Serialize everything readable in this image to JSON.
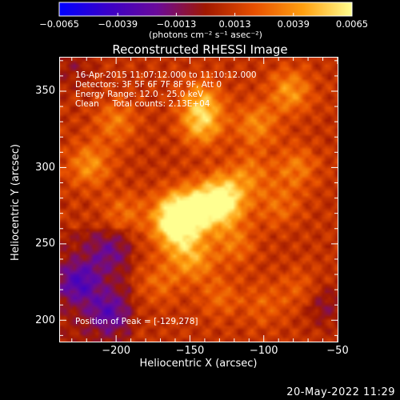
{
  "chart_data": {
    "type": "heatmap",
    "title": "Reconstructed RHESSI Image",
    "xlabel": "Heliocentric X (arcsec)",
    "ylabel": "Heliocentric Y (arcsec)",
    "xlim": [
      -238,
      -50
    ],
    "ylim": [
      186,
      372
    ],
    "x_ticks": [
      {
        "value": -200,
        "label": "−200"
      },
      {
        "value": -150,
        "label": "−150"
      },
      {
        "value": -100,
        "label": "−100"
      },
      {
        "value": -50,
        "label": "−50"
      }
    ],
    "y_ticks": [
      {
        "value": 200,
        "label": "200"
      },
      {
        "value": 250,
        "label": "250"
      },
      {
        "value": 300,
        "label": "300"
      },
      {
        "value": 350,
        "label": "350"
      }
    ],
    "colorbar": {
      "min": -0.0065,
      "max": 0.0065,
      "ticks": [
        {
          "value": -0.0065,
          "label": "−0.0065"
        },
        {
          "value": -0.0039,
          "label": "−0.0039"
        },
        {
          "value": -0.0013,
          "label": "−0.0013"
        },
        {
          "value": 0.0013,
          "label": "0.0013"
        },
        {
          "value": 0.0039,
          "label": "0.0039"
        },
        {
          "value": 0.0065,
          "label": "0.0065"
        }
      ],
      "units_label": "(photons cm⁻² s⁻¹ asec⁻²)",
      "colormap": [
        "#0000ff",
        "#3a00c8",
        "#6a0a9a",
        "#a01800",
        "#e85000",
        "#ffa010",
        "#ffff90"
      ]
    },
    "annotations": [
      "16-Apr-2015 11:07:12.000 to 11:10:12.000",
      "Detectors: 3F 5F 6F 7F 8F 9F, Att 0",
      "Energy Range: 12.0 - 25.0 keV",
      "Clean     Total counts: 2.13E+04"
    ],
    "peak_text": "Position of Peak = [-129,278]",
    "sources": [
      {
        "x": -129,
        "y": 278,
        "strength": 0.0065
      },
      {
        "x": -150,
        "y": 270,
        "strength": 0.0052
      },
      {
        "x": -162,
        "y": 268,
        "strength": 0.004
      },
      {
        "x": -142,
        "y": 328,
        "strength": 0.0034
      },
      {
        "x": -142,
        "y": 343,
        "strength": 0.003
      },
      {
        "x": -82,
        "y": 350,
        "strength": 0.003
      },
      {
        "x": -105,
        "y": 328,
        "strength": 0.0026
      },
      {
        "x": -218,
        "y": 302,
        "strength": 0.0028
      },
      {
        "x": -200,
        "y": 330,
        "strength": 0.0022
      },
      {
        "x": -148,
        "y": 240,
        "strength": 0.003
      },
      {
        "x": -160,
        "y": 255,
        "strength": 0.0025
      },
      {
        "x": -78,
        "y": 300,
        "strength": 0.0022
      },
      {
        "x": -110,
        "y": 295,
        "strength": 0.0022
      },
      {
        "x": -120,
        "y": 250,
        "strength": 0.002
      },
      {
        "x": -90,
        "y": 275,
        "strength": 0.0018
      },
      {
        "x": -195,
        "y": 270,
        "strength": 0.0018
      },
      {
        "x": -170,
        "y": 225,
        "strength": 0.0016
      },
      {
        "x": -130,
        "y": 215,
        "strength": 0.0016
      },
      {
        "x": -100,
        "y": 210,
        "strength": 0.0014
      },
      {
        "x": -75,
        "y": 220,
        "strength": 0.0014
      }
    ],
    "negative_regions": [
      {
        "x": -225,
        "y": 225,
        "strength": -0.0035
      },
      {
        "x": -205,
        "y": 205,
        "strength": -0.003
      },
      {
        "x": -205,
        "y": 245,
        "strength": -0.0022
      },
      {
        "x": -60,
        "y": 210,
        "strength": -0.0018
      },
      {
        "x": -230,
        "y": 365,
        "strength": -0.0012
      }
    ]
  },
  "timestamp": "20-May-2022 11:29"
}
